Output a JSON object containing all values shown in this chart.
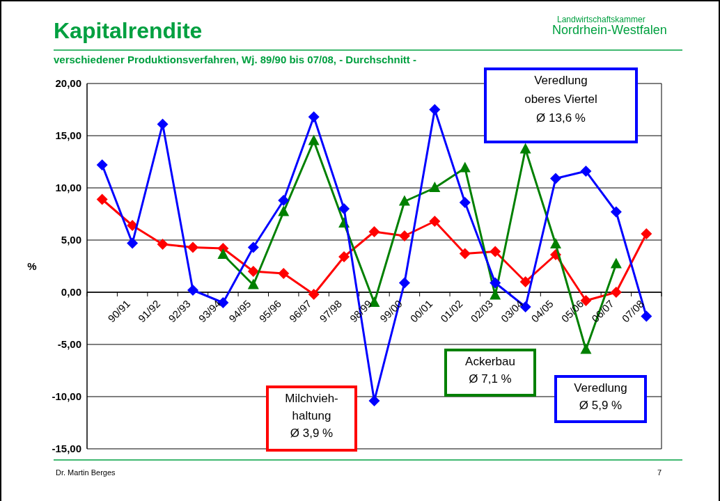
{
  "chart_data": {
    "type": "line",
    "title": "Kapitalrendite",
    "subtitle": "verschiedener Produktionsverfahren, Wj. 89/90 bis 07/08, - Durchschnitt -",
    "ylabel": "%",
    "categories": [
      null,
      "90/91",
      "91/92",
      "92/93",
      "93/94",
      "94/95",
      "95/96",
      "96/97",
      "97/98",
      "98/99",
      "99/00",
      "00/01",
      "01/02",
      "02/03",
      "03/04",
      "04/05",
      "05/06",
      "06/07",
      "07/08"
    ],
    "series": [
      {
        "color": "#ff0000",
        "marker": "diamond",
        "values": [
          8.9,
          6.4,
          4.6,
          4.3,
          4.2,
          2.0,
          1.8,
          -0.2,
          3.4,
          5.8,
          5.4,
          6.8,
          3.7,
          3.9,
          1.0,
          3.6,
          -0.8,
          0.0,
          5.6
        ]
      },
      {
        "color": "#008000",
        "marker": "triangle",
        "values": [
          null,
          null,
          null,
          null,
          3.6,
          0.7,
          7.7,
          14.5,
          6.6,
          -1.0,
          8.7,
          10.0,
          11.9,
          -0.3,
          13.7,
          4.6,
          -5.5,
          2.7,
          null
        ]
      },
      {
        "color": "#0000ff",
        "marker": "diamond",
        "values": [
          12.2,
          4.7,
          16.1,
          0.2,
          -1.0,
          4.3,
          8.8,
          16.8,
          8.0,
          -10.4,
          0.9,
          17.5,
          8.6,
          0.9,
          -1.4,
          10.9,
          11.6,
          7.7,
          -2.3
        ]
      }
    ],
    "ylim": [
      -15,
      20
    ],
    "yticks": [
      {
        "value": -15,
        "label": "-15,00"
      },
      {
        "value": -10,
        "label": "-10,00"
      },
      {
        "value": -5,
        "label": "-5,00"
      },
      {
        "value": 0,
        "label": "0,00"
      },
      {
        "value": 5,
        "label": "5,00"
      },
      {
        "value": 10,
        "label": "10,00"
      },
      {
        "value": 15,
        "label": "15,00"
      },
      {
        "value": 20,
        "label": "20,00"
      }
    ],
    "grid": "y",
    "annotations": [
      "Veredlung\noberes Viertel\n\nØ 13,6 %",
      "Milchvieh-\nhaltung\nØ 3,9 %",
      "Ackerbau\nØ 7,1 %",
      "Veredlung\nØ 5,9 %",
      "Dr. Martin Berges",
      "7",
      "Landwirtschaftskammer\nNordrhein-Westfalen"
    ]
  }
}
